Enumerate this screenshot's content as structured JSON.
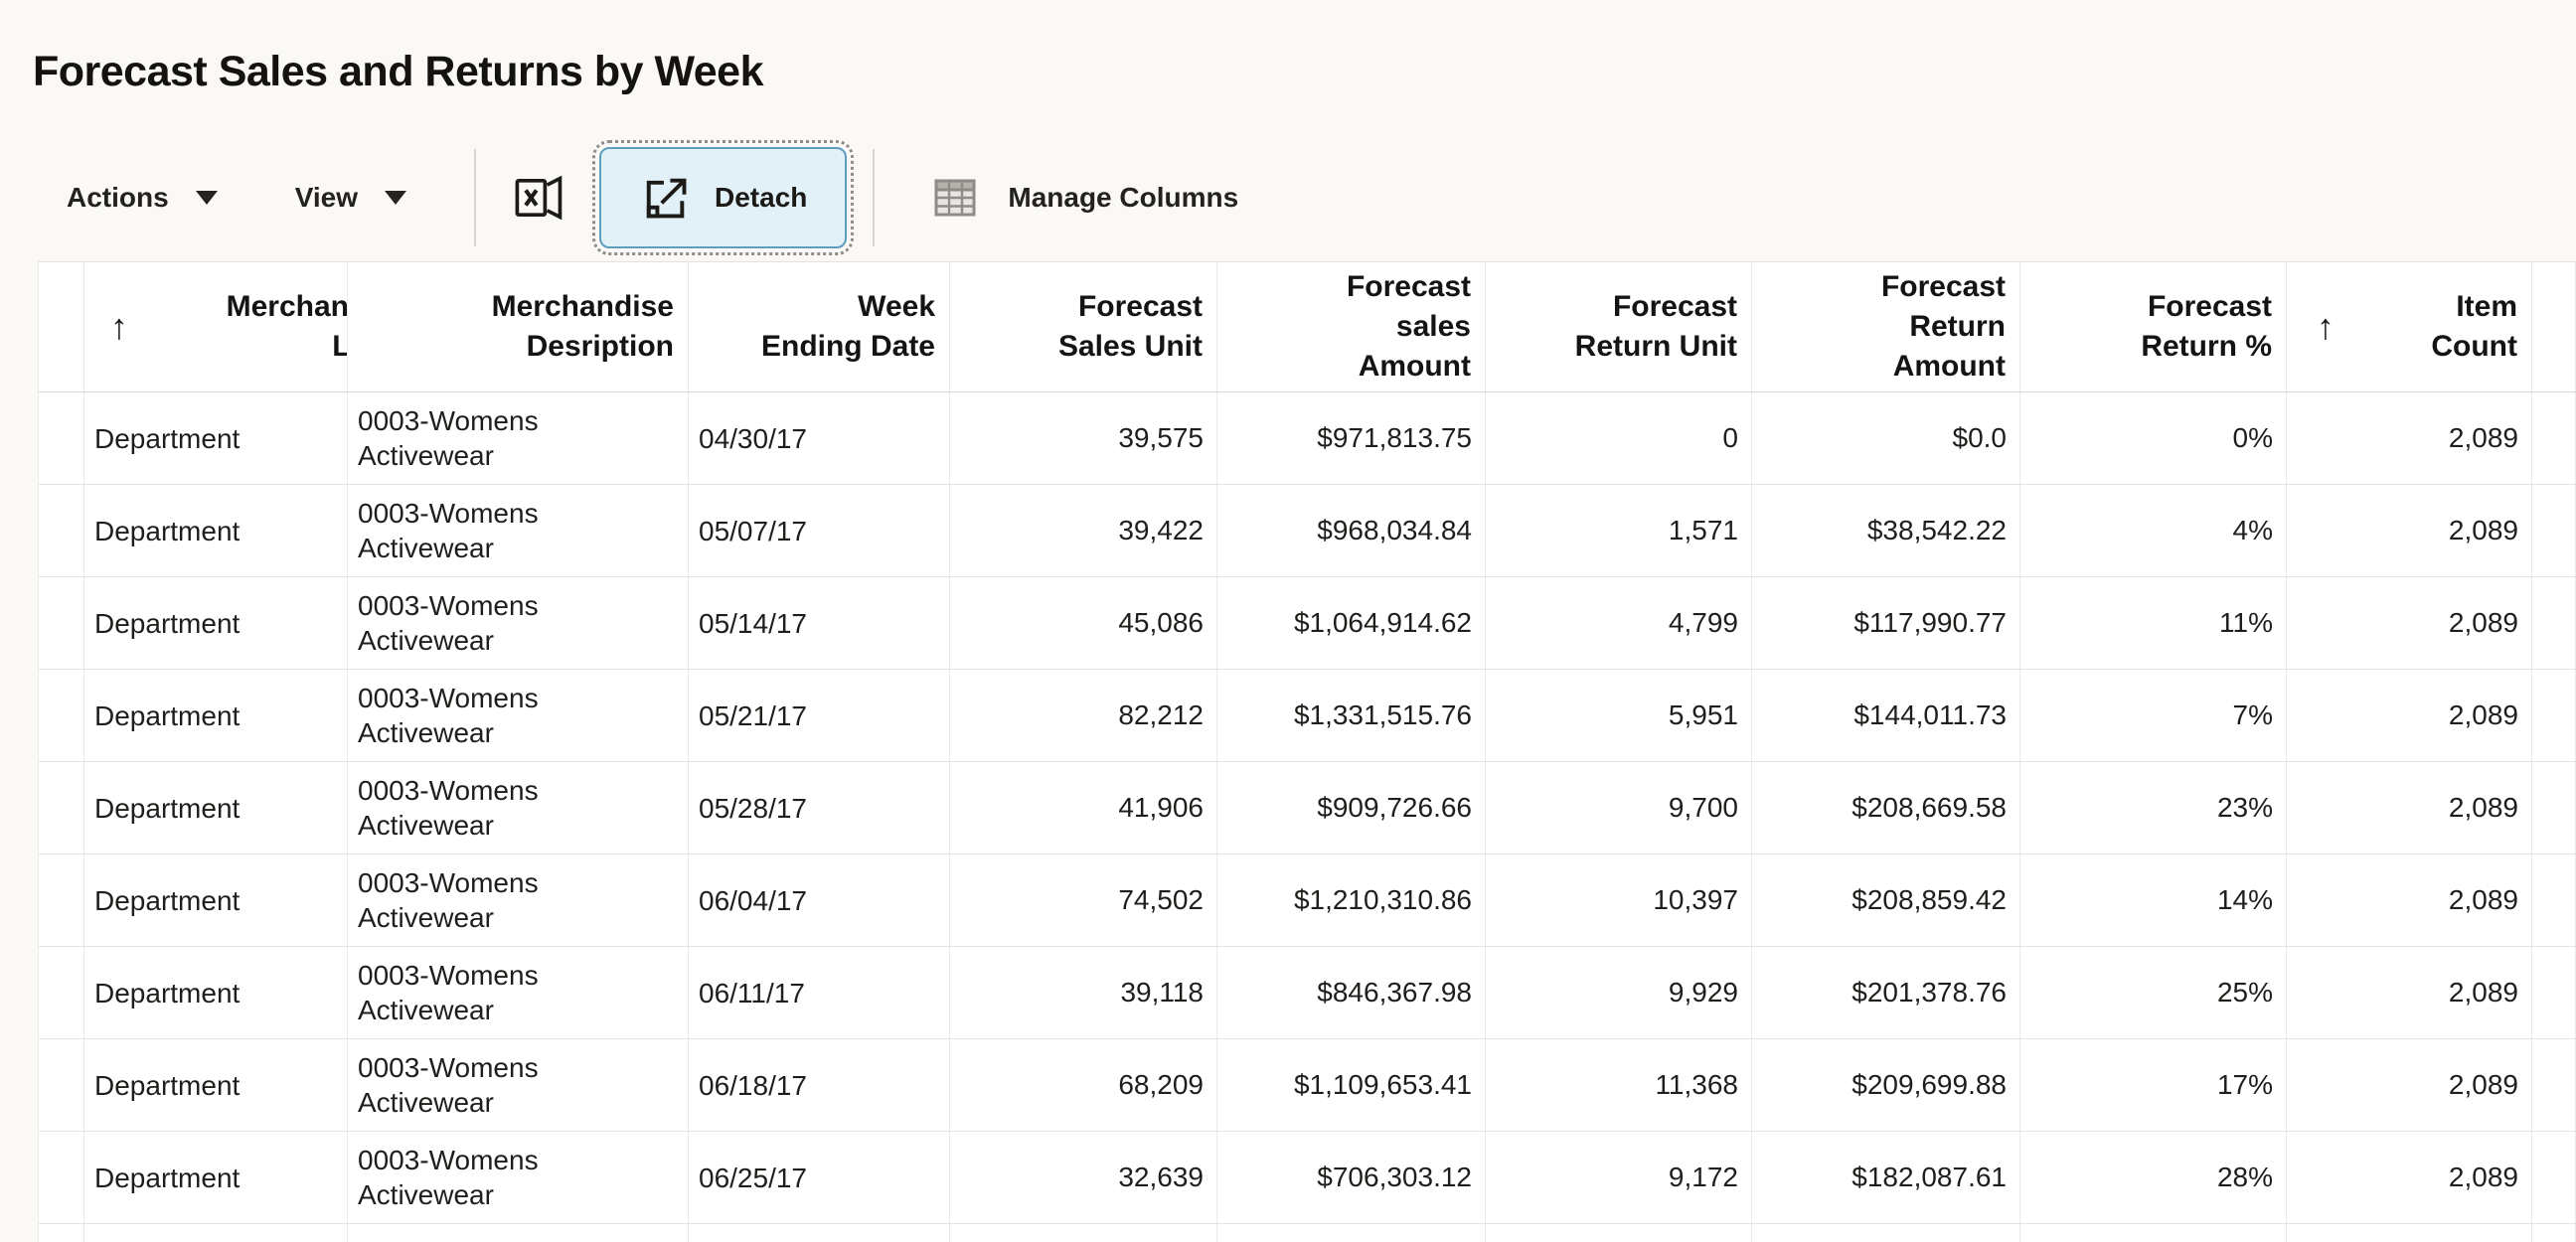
{
  "page": {
    "title": "Forecast Sales and Returns by Week"
  },
  "toolbar": {
    "actions_label": "Actions",
    "view_label": "View",
    "detach_label": "Detach",
    "manage_columns_label": "Manage Columns",
    "detach_button_state": "selected",
    "detach_bg_color": "#e2f0f7",
    "detach_border_color": "#5d9dbe"
  },
  "icons": {
    "sort_ascending": "↑",
    "excel_export": "excel-export-icon",
    "detach": "detach-window-icon",
    "manage_columns": "table-grid-icon",
    "dropdown": "chevron-down"
  },
  "table": {
    "columns": [
      {
        "id": "selector",
        "label": ""
      },
      {
        "id": "merch_level",
        "label": "Merchandise\nLevel",
        "sort": "ascending"
      },
      {
        "id": "merch_desc",
        "label": "Merchandise\nDesription"
      },
      {
        "id": "week_ending",
        "label": "Week\nEnding Date"
      },
      {
        "id": "sales_unit",
        "label": "Forecast\nSales Unit"
      },
      {
        "id": "sales_amount",
        "label": "Forecast\nsales\nAmount"
      },
      {
        "id": "return_unit",
        "label": "Forecast\nReturn Unit"
      },
      {
        "id": "return_amount",
        "label": "Forecast\nReturn\nAmount"
      },
      {
        "id": "return_pct",
        "label": "Forecast\nReturn %"
      },
      {
        "id": "item_count",
        "label": "Item\nCount",
        "sort": "ascending"
      }
    ],
    "rows": [
      {
        "merch_level": "Department",
        "merch_desc": "0003-Womens Activewear",
        "week_ending": "04/30/17",
        "sales_unit": "39,575",
        "sales_amount": "$971,813.75",
        "return_unit": "0",
        "return_amount": "$0.0",
        "return_pct": "0%",
        "item_count": "2,089"
      },
      {
        "merch_level": "Department",
        "merch_desc": "0003-Womens Activewear",
        "week_ending": "05/07/17",
        "sales_unit": "39,422",
        "sales_amount": "$968,034.84",
        "return_unit": "1,571",
        "return_amount": "$38,542.22",
        "return_pct": "4%",
        "item_count": "2,089"
      },
      {
        "merch_level": "Department",
        "merch_desc": "0003-Womens Activewear",
        "week_ending": "05/14/17",
        "sales_unit": "45,086",
        "sales_amount": "$1,064,914.62",
        "return_unit": "4,799",
        "return_amount": "$117,990.77",
        "return_pct": "11%",
        "item_count": "2,089"
      },
      {
        "merch_level": "Department",
        "merch_desc": "0003-Womens Activewear",
        "week_ending": "05/21/17",
        "sales_unit": "82,212",
        "sales_amount": "$1,331,515.76",
        "return_unit": "5,951",
        "return_amount": "$144,011.73",
        "return_pct": "7%",
        "item_count": "2,089"
      },
      {
        "merch_level": "Department",
        "merch_desc": "0003-Womens Activewear",
        "week_ending": "05/28/17",
        "sales_unit": "41,906",
        "sales_amount": "$909,726.66",
        "return_unit": "9,700",
        "return_amount": "$208,669.58",
        "return_pct": "23%",
        "item_count": "2,089"
      },
      {
        "merch_level": "Department",
        "merch_desc": "0003-Womens Activewear",
        "week_ending": "06/04/17",
        "sales_unit": "74,502",
        "sales_amount": "$1,210,310.86",
        "return_unit": "10,397",
        "return_amount": "$208,859.42",
        "return_pct": "14%",
        "item_count": "2,089"
      },
      {
        "merch_level": "Department",
        "merch_desc": "0003-Womens Activewear",
        "week_ending": "06/11/17",
        "sales_unit": "39,118",
        "sales_amount": "$846,367.98",
        "return_unit": "9,929",
        "return_amount": "$201,378.76",
        "return_pct": "25%",
        "item_count": "2,089"
      },
      {
        "merch_level": "Department",
        "merch_desc": "0003-Womens Activewear",
        "week_ending": "06/18/17",
        "sales_unit": "68,209",
        "sales_amount": "$1,109,653.41",
        "return_unit": "11,368",
        "return_amount": "$209,699.88",
        "return_pct": "17%",
        "item_count": "2,089"
      },
      {
        "merch_level": "Department",
        "merch_desc": "0003-Womens Activewear",
        "week_ending": "06/25/17",
        "sales_unit": "32,639",
        "sales_amount": "$706,303.12",
        "return_unit": "9,172",
        "return_amount": "$182,087.61",
        "return_pct": "28%",
        "item_count": "2,089"
      }
    ]
  }
}
